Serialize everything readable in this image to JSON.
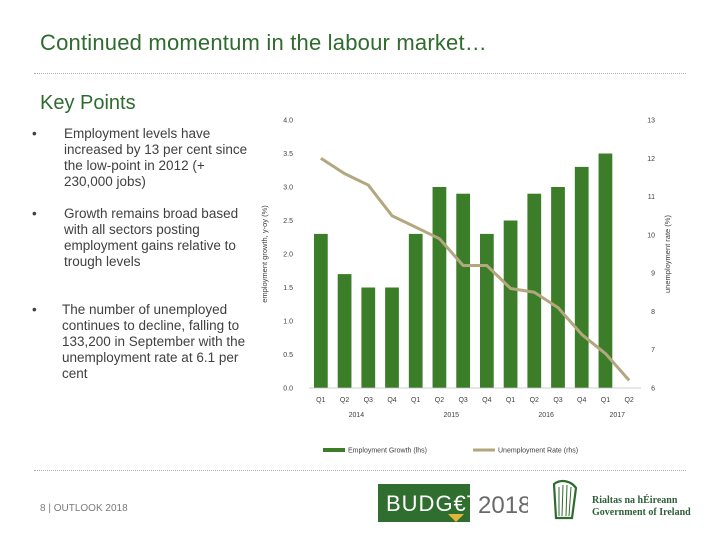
{
  "slide": {
    "title": "Continued momentum in the labour market…",
    "subtitle": "Key Points",
    "points": [
      "Employment levels have increased by 13 per cent since the low-point in 2012 (+ 230,000 jobs)",
      "Growth remains broad based with all sectors posting employment gains relative to trough levels",
      "The number of unemployed continues to decline, falling to 133,200 in September with the unemployment rate at 6.1 per cent"
    ],
    "footer": "8 | OUTLOOK 2018",
    "budget_logo": {
      "word": "BUDG€T",
      "year": "2018"
    },
    "gov_logo": {
      "line1": "Rialtas na hÉireann",
      "line2": "Government of Ireland"
    },
    "colors": {
      "title": "#2e6b2e",
      "bar": "#3c7d2a",
      "line": "#b2a77e",
      "budget_box": "#2f6e2f"
    }
  },
  "chart_data": {
    "type": "bar",
    "categories": [
      "Q1",
      "Q2",
      "Q3",
      "Q4",
      "Q1",
      "Q2",
      "Q3",
      "Q4",
      "Q1",
      "Q2",
      "Q3",
      "Q4",
      "Q1",
      "Q2"
    ],
    "year_labels": [
      {
        "label": "2014",
        "start": 0,
        "end": 3
      },
      {
        "label": "2015",
        "start": 4,
        "end": 7
      },
      {
        "label": "2016",
        "start": 8,
        "end": 11
      },
      {
        "label": "2017",
        "start": 12,
        "end": 13
      }
    ],
    "series": [
      {
        "name": "Employment Growth (lhs)",
        "type": "bar",
        "axis": "left",
        "values": [
          2.3,
          1.7,
          1.5,
          1.5,
          2.3,
          3.0,
          2.9,
          2.3,
          2.5,
          2.9,
          3.0,
          3.3,
          3.5,
          null
        ]
      },
      {
        "name": "Unemployment Rate (rhs)",
        "type": "line",
        "axis": "right",
        "values": [
          12.0,
          11.6,
          11.3,
          10.5,
          10.2,
          9.9,
          9.2,
          9.2,
          8.6,
          8.5,
          8.1,
          7.4,
          6.9,
          6.2
        ]
      }
    ],
    "ylabel": "employment growth, y-oy (%)",
    "y2label": "unemployment rate (%)",
    "ylim": [
      0.0,
      4.0
    ],
    "y2lim": [
      6,
      13
    ],
    "yticks": [
      "0.0",
      "0.5",
      "1.0",
      "1.5",
      "2.0",
      "2.5",
      "3.0",
      "3.5",
      "4.0"
    ],
    "y2ticks": [
      "6",
      "7",
      "8",
      "9",
      "10",
      "11",
      "12",
      "13"
    ],
    "grid": false,
    "legend": "bottom"
  }
}
